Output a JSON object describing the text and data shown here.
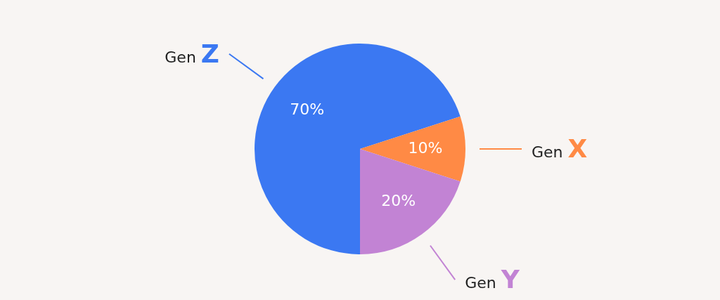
{
  "chart_data": {
    "type": "pie",
    "categories": [
      "Gen Z",
      "Gen X",
      "Gen Y"
    ],
    "values": [
      70,
      10,
      20
    ],
    "colors": [
      "#3b78f2",
      "#ff8a45",
      "#c283d4"
    ],
    "value_labels": [
      "70%",
      "10%",
      "20%"
    ],
    "legend": false
  }
}
